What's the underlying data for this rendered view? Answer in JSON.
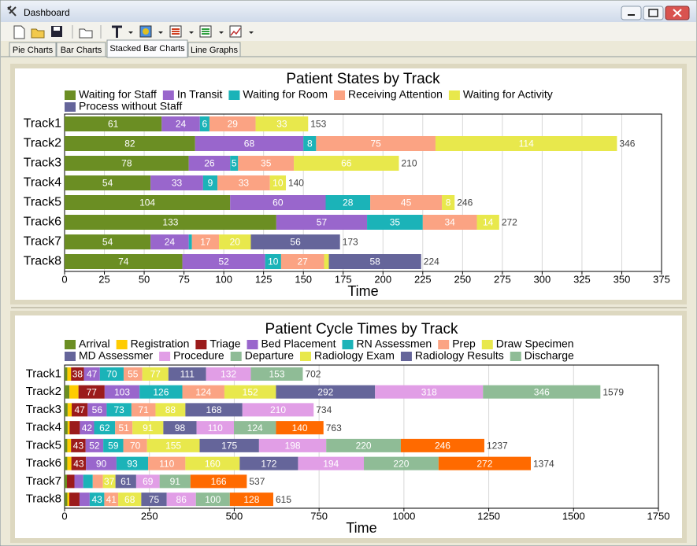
{
  "window": {
    "title": "Dashboard",
    "tabs": [
      "Pie Charts",
      "Bar Charts",
      "Stacked Bar Charts",
      "Line Graphs"
    ],
    "active_tab": 2
  },
  "chart_data": [
    {
      "type": "bar",
      "orientation": "horizontal",
      "stacked": true,
      "title": "Patient States by Track",
      "xlabel": "Time",
      "categories": [
        "Track1",
        "Track2",
        "Track3",
        "Track4",
        "Track5",
        "Track6",
        "Track7",
        "Track8"
      ],
      "series": [
        {
          "name": "Waiting for Staff",
          "color": "#6b8e23",
          "values": [
            61,
            82,
            78,
            54,
            104,
            133,
            54,
            74
          ]
        },
        {
          "name": "In Transit",
          "color": "#9966cc",
          "values": [
            24,
            68,
            26,
            33,
            60,
            57,
            24,
            52
          ]
        },
        {
          "name": "Waiting for Room",
          "color": "#1bb3b8",
          "values": [
            6,
            8,
            5,
            9,
            28,
            35,
            2,
            10
          ]
        },
        {
          "name": "Receiving Attention",
          "color": "#fba383",
          "values": [
            29,
            75,
            35,
            33,
            45,
            34,
            17,
            27
          ]
        },
        {
          "name": "Waiting for Activity",
          "color": "#e8e84c",
          "values": [
            33,
            114,
            66,
            10,
            8,
            14,
            20,
            3
          ]
        },
        {
          "name": "Process without Staff",
          "color": "#65659a",
          "values": [
            0,
            0,
            0,
            0,
            0,
            0,
            56,
            58
          ]
        }
      ],
      "totals": [
        153,
        346,
        210,
        140,
        246,
        272,
        173,
        224
      ],
      "xlim": [
        0,
        375
      ],
      "xticks": [
        0,
        25,
        50,
        75,
        100,
        125,
        150,
        175,
        200,
        225,
        250,
        275,
        300,
        325,
        350,
        375
      ],
      "grid": true
    },
    {
      "type": "bar",
      "orientation": "horizontal",
      "stacked": true,
      "title": "Patient Cycle Times by Track",
      "xlabel": "Time",
      "categories": [
        "Track1",
        "Track2",
        "Track3",
        "Track4",
        "Track5",
        "Track6",
        "Track7",
        "Track8"
      ],
      "series": [
        {
          "name": "Arrival",
          "color": "#6b8e23",
          "values": [
            8,
            14,
            9,
            9,
            8,
            8,
            7,
            8
          ]
        },
        {
          "name": "Registration",
          "color": "#ffcc00",
          "values": [
            11,
            27,
            12,
            6,
            11,
            12,
            0,
            6
          ]
        },
        {
          "name": "Triage",
          "color": "#9b1b1b",
          "values": [
            38,
            77,
            47,
            30,
            43,
            43,
            22,
            30
          ]
        },
        {
          "name": "Bed Placement",
          "color": "#9966cc",
          "values": [
            47,
            103,
            56,
            42,
            52,
            90,
            26,
            30
          ]
        },
        {
          "name": "RN Assessmen",
          "color": "#1bb3b8",
          "values": [
            70,
            126,
            73,
            62,
            59,
            93,
            28,
            43
          ]
        },
        {
          "name": "Prep",
          "color": "#fba383",
          "values": [
            55,
            124,
            71,
            51,
            70,
            110,
            30,
            41
          ]
        },
        {
          "name": "Draw Specimen",
          "color": "#e8e84c",
          "values": [
            77,
            152,
            88,
            91,
            155,
            160,
            37,
            68
          ]
        },
        {
          "name": "MD Assessmer",
          "color": "#65659a",
          "values": [
            111,
            292,
            168,
            98,
            175,
            172,
            61,
            75
          ]
        },
        {
          "name": "Procedure",
          "color": "#e19ee6",
          "values": [
            132,
            318,
            210,
            110,
            198,
            194,
            69,
            86
          ]
        },
        {
          "name": "Departure",
          "color": "#8fbc96",
          "values": [
            153,
            346,
            0,
            124,
            220,
            220,
            91,
            100
          ]
        },
        {
          "name": "Radiology Exam",
          "color": "#e8e84c",
          "values": [
            0,
            0,
            0,
            0,
            0,
            0,
            0,
            0
          ]
        },
        {
          "name": "Radiology Results",
          "color": "#65659a",
          "values": [
            0,
            0,
            0,
            0,
            0,
            0,
            0,
            0
          ]
        },
        {
          "name": "Discharge",
          "color": "#8fbc96",
          "values": [
            0,
            0,
            0,
            0,
            0,
            0,
            0,
            0
          ]
        },
        {
          "color": "#ff6a00",
          "values": [
            0,
            0,
            0,
            140,
            246,
            272,
            166,
            128
          ]
        }
      ],
      "totals": [
        702,
        1579,
        734,
        763,
        1237,
        1374,
        537,
        615
      ],
      "xlim": [
        0,
        1750
      ],
      "xticks": [
        0,
        250,
        500,
        750,
        1000,
        1250,
        1500,
        1750
      ],
      "grid": true
    }
  ]
}
